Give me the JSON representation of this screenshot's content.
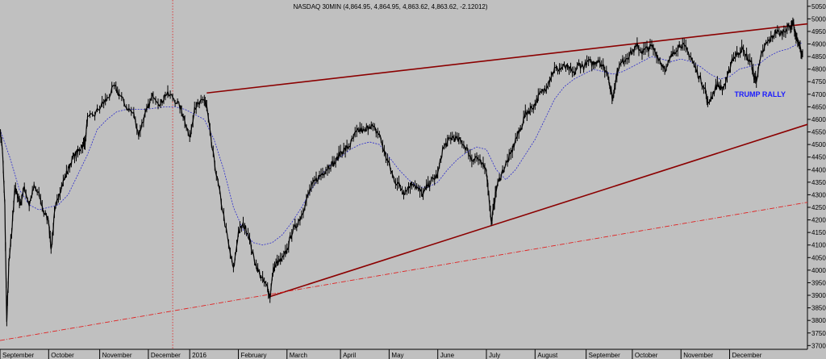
{
  "chart_data": {
    "type": "line",
    "title": "NASDAQ 30MIN (4,864.95, 4,864.95, 4,863.62, 4,863.62, -2.12012)",
    "xlabel": "",
    "ylabel": "",
    "ylim": [
      3685,
      5075
    ],
    "yticks": [
      3700,
      3750,
      3800,
      3850,
      3900,
      3950,
      4000,
      4050,
      4100,
      4150,
      4200,
      4250,
      4300,
      4350,
      4400,
      4450,
      4500,
      4550,
      4600,
      4650,
      4700,
      4750,
      4800,
      4850,
      4900,
      4950,
      5000,
      5050
    ],
    "x_tick_labels": [
      {
        "label": "September",
        "pos": 0.5
      },
      {
        "label": "October",
        "pos": 1.5
      },
      {
        "label": "November",
        "pos": 2.55
      },
      {
        "label": "December",
        "pos": 3.55
      },
      {
        "label": "2016",
        "pos": 4.4
      },
      {
        "label": "February",
        "pos": 5.4
      },
      {
        "label": "March",
        "pos": 6.4
      },
      {
        "label": "April",
        "pos": 7.5
      },
      {
        "label": "May",
        "pos": 8.5
      },
      {
        "label": "June",
        "pos": 9.5
      },
      {
        "label": "July",
        "pos": 10.5
      },
      {
        "label": "August",
        "pos": 11.5
      },
      {
        "label": "September",
        "pos": 12.55
      },
      {
        "label": "October",
        "pos": 13.5
      },
      {
        "label": "November",
        "pos": 14.5
      },
      {
        "label": "December",
        "pos": 15.5
      }
    ],
    "xlim": [
      0,
      16.6
    ],
    "grid": false,
    "legend": "none",
    "series": [
      {
        "type": "price",
        "color": "#000000",
        "points": [
          [
            0.0,
            4560
          ],
          [
            0.05,
            4480
          ],
          [
            0.1,
            4250
          ],
          [
            0.14,
            3790
          ],
          [
            0.18,
            4020
          ],
          [
            0.24,
            4150
          ],
          [
            0.3,
            4320
          ],
          [
            0.36,
            4300
          ],
          [
            0.42,
            4260
          ],
          [
            0.5,
            4330
          ],
          [
            0.6,
            4260
          ],
          [
            0.7,
            4330
          ],
          [
            0.8,
            4300
          ],
          [
            0.9,
            4230
          ],
          [
            1.0,
            4200
          ],
          [
            1.05,
            4080
          ],
          [
            1.12,
            4220
          ],
          [
            1.2,
            4300
          ],
          [
            1.3,
            4350
          ],
          [
            1.4,
            4400
          ],
          [
            1.5,
            4450
          ],
          [
            1.6,
            4470
          ],
          [
            1.7,
            4500
          ],
          [
            1.75,
            4510
          ],
          [
            1.8,
            4600
          ],
          [
            1.95,
            4620
          ],
          [
            2.1,
            4660
          ],
          [
            2.2,
            4680
          ],
          [
            2.35,
            4730
          ],
          [
            2.45,
            4700
          ],
          [
            2.6,
            4650
          ],
          [
            2.75,
            4620
          ],
          [
            2.85,
            4540
          ],
          [
            2.95,
            4600
          ],
          [
            3.05,
            4650
          ],
          [
            3.15,
            4700
          ],
          [
            3.3,
            4660
          ],
          [
            3.4,
            4700
          ],
          [
            3.55,
            4690
          ],
          [
            3.7,
            4650
          ],
          [
            3.8,
            4600
          ],
          [
            3.9,
            4520
          ],
          [
            4.0,
            4650
          ],
          [
            4.1,
            4660
          ],
          [
            4.2,
            4680
          ],
          [
            4.25,
            4650
          ],
          [
            4.35,
            4500
          ],
          [
            4.45,
            4380
          ],
          [
            4.55,
            4270
          ],
          [
            4.7,
            4100
          ],
          [
            4.8,
            4000
          ],
          [
            4.9,
            4150
          ],
          [
            5.0,
            4180
          ],
          [
            5.1,
            4150
          ],
          [
            5.2,
            4060
          ],
          [
            5.3,
            4000
          ],
          [
            5.4,
            3960
          ],
          [
            5.5,
            3930
          ],
          [
            5.55,
            3895
          ],
          [
            5.62,
            4000
          ],
          [
            5.7,
            4030
          ],
          [
            5.8,
            4040
          ],
          [
            5.9,
            4080
          ],
          [
            6.0,
            4150
          ],
          [
            6.1,
            4180
          ],
          [
            6.2,
            4220
          ],
          [
            6.3,
            4280
          ],
          [
            6.4,
            4330
          ],
          [
            6.5,
            4360
          ],
          [
            6.6,
            4380
          ],
          [
            6.7,
            4400
          ],
          [
            6.8,
            4420
          ],
          [
            6.9,
            4430
          ],
          [
            7.0,
            4470
          ],
          [
            7.1,
            4480
          ],
          [
            7.2,
            4500
          ],
          [
            7.3,
            4540
          ],
          [
            7.4,
            4560
          ],
          [
            7.5,
            4550
          ],
          [
            7.6,
            4580
          ],
          [
            7.7,
            4560
          ],
          [
            7.8,
            4540
          ],
          [
            7.9,
            4470
          ],
          [
            8.0,
            4420
          ],
          [
            8.1,
            4360
          ],
          [
            8.2,
            4340
          ],
          [
            8.3,
            4310
          ],
          [
            8.4,
            4330
          ],
          [
            8.5,
            4350
          ],
          [
            8.6,
            4320
          ],
          [
            8.7,
            4300
          ],
          [
            8.8,
            4340
          ],
          [
            8.9,
            4360
          ],
          [
            9.0,
            4380
          ],
          [
            9.1,
            4480
          ],
          [
            9.2,
            4510
          ],
          [
            9.3,
            4530
          ],
          [
            9.4,
            4520
          ],
          [
            9.5,
            4510
          ],
          [
            9.6,
            4480
          ],
          [
            9.7,
            4440
          ],
          [
            9.8,
            4450
          ],
          [
            9.9,
            4420
          ],
          [
            10.0,
            4400
          ],
          [
            10.05,
            4300
          ],
          [
            10.1,
            4190
          ],
          [
            10.15,
            4250
          ],
          [
            10.2,
            4320
          ],
          [
            10.3,
            4380
          ],
          [
            10.4,
            4420
          ],
          [
            10.5,
            4460
          ],
          [
            10.6,
            4520
          ],
          [
            10.7,
            4560
          ],
          [
            10.8,
            4620
          ],
          [
            10.9,
            4640
          ],
          [
            11.0,
            4660
          ],
          [
            11.1,
            4700
          ],
          [
            11.2,
            4720
          ],
          [
            11.3,
            4760
          ],
          [
            11.4,
            4800
          ],
          [
            11.5,
            4800
          ],
          [
            11.6,
            4810
          ],
          [
            11.7,
            4800
          ],
          [
            11.8,
            4780
          ],
          [
            11.9,
            4820
          ],
          [
            12.0,
            4810
          ],
          [
            12.1,
            4830
          ],
          [
            12.2,
            4820
          ],
          [
            12.3,
            4840
          ],
          [
            12.4,
            4810
          ],
          [
            12.5,
            4780
          ],
          [
            12.55,
            4720
          ],
          [
            12.6,
            4680
          ],
          [
            12.65,
            4750
          ],
          [
            12.7,
            4800
          ],
          [
            12.8,
            4830
          ],
          [
            12.9,
            4850
          ],
          [
            13.0,
            4870
          ],
          [
            13.1,
            4890
          ],
          [
            13.2,
            4870
          ],
          [
            13.3,
            4880
          ],
          [
            13.4,
            4890
          ],
          [
            13.5,
            4860
          ],
          [
            13.6,
            4820
          ],
          [
            13.7,
            4800
          ],
          [
            13.8,
            4850
          ],
          [
            13.9,
            4880
          ],
          [
            14.0,
            4900
          ],
          [
            14.1,
            4880
          ],
          [
            14.2,
            4850
          ],
          [
            14.3,
            4800
          ],
          [
            14.4,
            4760
          ],
          [
            14.5,
            4720
          ],
          [
            14.55,
            4660
          ],
          [
            14.65,
            4700
          ],
          [
            14.75,
            4740
          ],
          [
            14.85,
            4720
          ],
          [
            14.95,
            4760
          ],
          [
            15.05,
            4840
          ],
          [
            15.15,
            4860
          ],
          [
            15.25,
            4880
          ],
          [
            15.35,
            4850
          ],
          [
            15.45,
            4820
          ],
          [
            15.5,
            4770
          ],
          [
            15.55,
            4760
          ],
          [
            15.65,
            4850
          ],
          [
            15.75,
            4900
          ],
          [
            15.85,
            4920
          ],
          [
            15.95,
            4950
          ],
          [
            16.05,
            4940
          ],
          [
            16.15,
            4960
          ],
          [
            16.25,
            4970
          ],
          [
            16.3,
            4990
          ],
          [
            16.35,
            4940
          ],
          [
            16.4,
            4910
          ],
          [
            16.45,
            4880
          ],
          [
            16.5,
            4863
          ]
        ]
      },
      {
        "type": "moving_average",
        "color": "#2b2bcc",
        "points": [
          [
            0.0,
            4560
          ],
          [
            0.2,
            4450
          ],
          [
            0.4,
            4320
          ],
          [
            0.6,
            4260
          ],
          [
            0.8,
            4240
          ],
          [
            1.0,
            4250
          ],
          [
            1.2,
            4260
          ],
          [
            1.4,
            4300
          ],
          [
            1.6,
            4380
          ],
          [
            1.8,
            4460
          ],
          [
            2.0,
            4560
          ],
          [
            2.2,
            4600
          ],
          [
            2.4,
            4630
          ],
          [
            2.6,
            4640
          ],
          [
            2.8,
            4640
          ],
          [
            3.0,
            4640
          ],
          [
            3.2,
            4645
          ],
          [
            3.4,
            4650
          ],
          [
            3.6,
            4650
          ],
          [
            3.8,
            4640
          ],
          [
            4.0,
            4620
          ],
          [
            4.2,
            4600
          ],
          [
            4.4,
            4520
          ],
          [
            4.6,
            4400
          ],
          [
            4.8,
            4250
          ],
          [
            5.0,
            4160
          ],
          [
            5.2,
            4110
          ],
          [
            5.4,
            4100
          ],
          [
            5.6,
            4110
          ],
          [
            5.8,
            4140
          ],
          [
            6.0,
            4190
          ],
          [
            6.2,
            4250
          ],
          [
            6.4,
            4320
          ],
          [
            6.6,
            4380
          ],
          [
            6.8,
            4420
          ],
          [
            7.0,
            4450
          ],
          [
            7.2,
            4480
          ],
          [
            7.4,
            4500
          ],
          [
            7.6,
            4510
          ],
          [
            7.8,
            4500
          ],
          [
            8.0,
            4450
          ],
          [
            8.2,
            4400
          ],
          [
            8.4,
            4360
          ],
          [
            8.6,
            4330
          ],
          [
            8.8,
            4330
          ],
          [
            9.0,
            4350
          ],
          [
            9.2,
            4400
          ],
          [
            9.4,
            4440
          ],
          [
            9.6,
            4470
          ],
          [
            9.8,
            4490
          ],
          [
            10.0,
            4480
          ],
          [
            10.2,
            4400
          ],
          [
            10.4,
            4360
          ],
          [
            10.6,
            4400
          ],
          [
            10.8,
            4460
          ],
          [
            11.0,
            4520
          ],
          [
            11.2,
            4600
          ],
          [
            11.4,
            4680
          ],
          [
            11.6,
            4730
          ],
          [
            11.8,
            4760
          ],
          [
            12.0,
            4780
          ],
          [
            12.2,
            4800
          ],
          [
            12.4,
            4790
          ],
          [
            12.6,
            4780
          ],
          [
            12.8,
            4790
          ],
          [
            13.0,
            4810
          ],
          [
            13.2,
            4830
          ],
          [
            13.4,
            4850
          ],
          [
            13.6,
            4840
          ],
          [
            13.8,
            4830
          ],
          [
            14.0,
            4840
          ],
          [
            14.2,
            4830
          ],
          [
            14.4,
            4810
          ],
          [
            14.6,
            4780
          ],
          [
            14.8,
            4760
          ],
          [
            15.0,
            4770
          ],
          [
            15.2,
            4800
          ],
          [
            15.4,
            4810
          ],
          [
            15.6,
            4820
          ],
          [
            15.8,
            4850
          ],
          [
            16.0,
            4870
          ],
          [
            16.2,
            4880
          ],
          [
            16.4,
            4900
          ],
          [
            16.5,
            4905
          ]
        ]
      }
    ],
    "trendlines": [
      {
        "name": "upper",
        "color": "#8b0000",
        "style": "solid",
        "from": [
          4.25,
          4705
        ],
        "to": [
          16.6,
          4980
        ]
      },
      {
        "name": "lower",
        "color": "#8b0000",
        "style": "solid",
        "from": [
          5.55,
          3895
        ],
        "to": [
          16.6,
          4580
        ]
      },
      {
        "name": "long-term",
        "color": "#e02020",
        "style": "dashdot",
        "from": [
          0.0,
          3720
        ],
        "to": [
          16.6,
          4270
        ]
      }
    ],
    "vertical_markers": [
      {
        "x": 3.55,
        "color": "#e02020",
        "style": "dotted"
      }
    ],
    "annotations": [
      {
        "text": "TRUMP RALLY",
        "x": 15.1,
        "y": 4690,
        "color": "#1a1aff"
      }
    ]
  }
}
